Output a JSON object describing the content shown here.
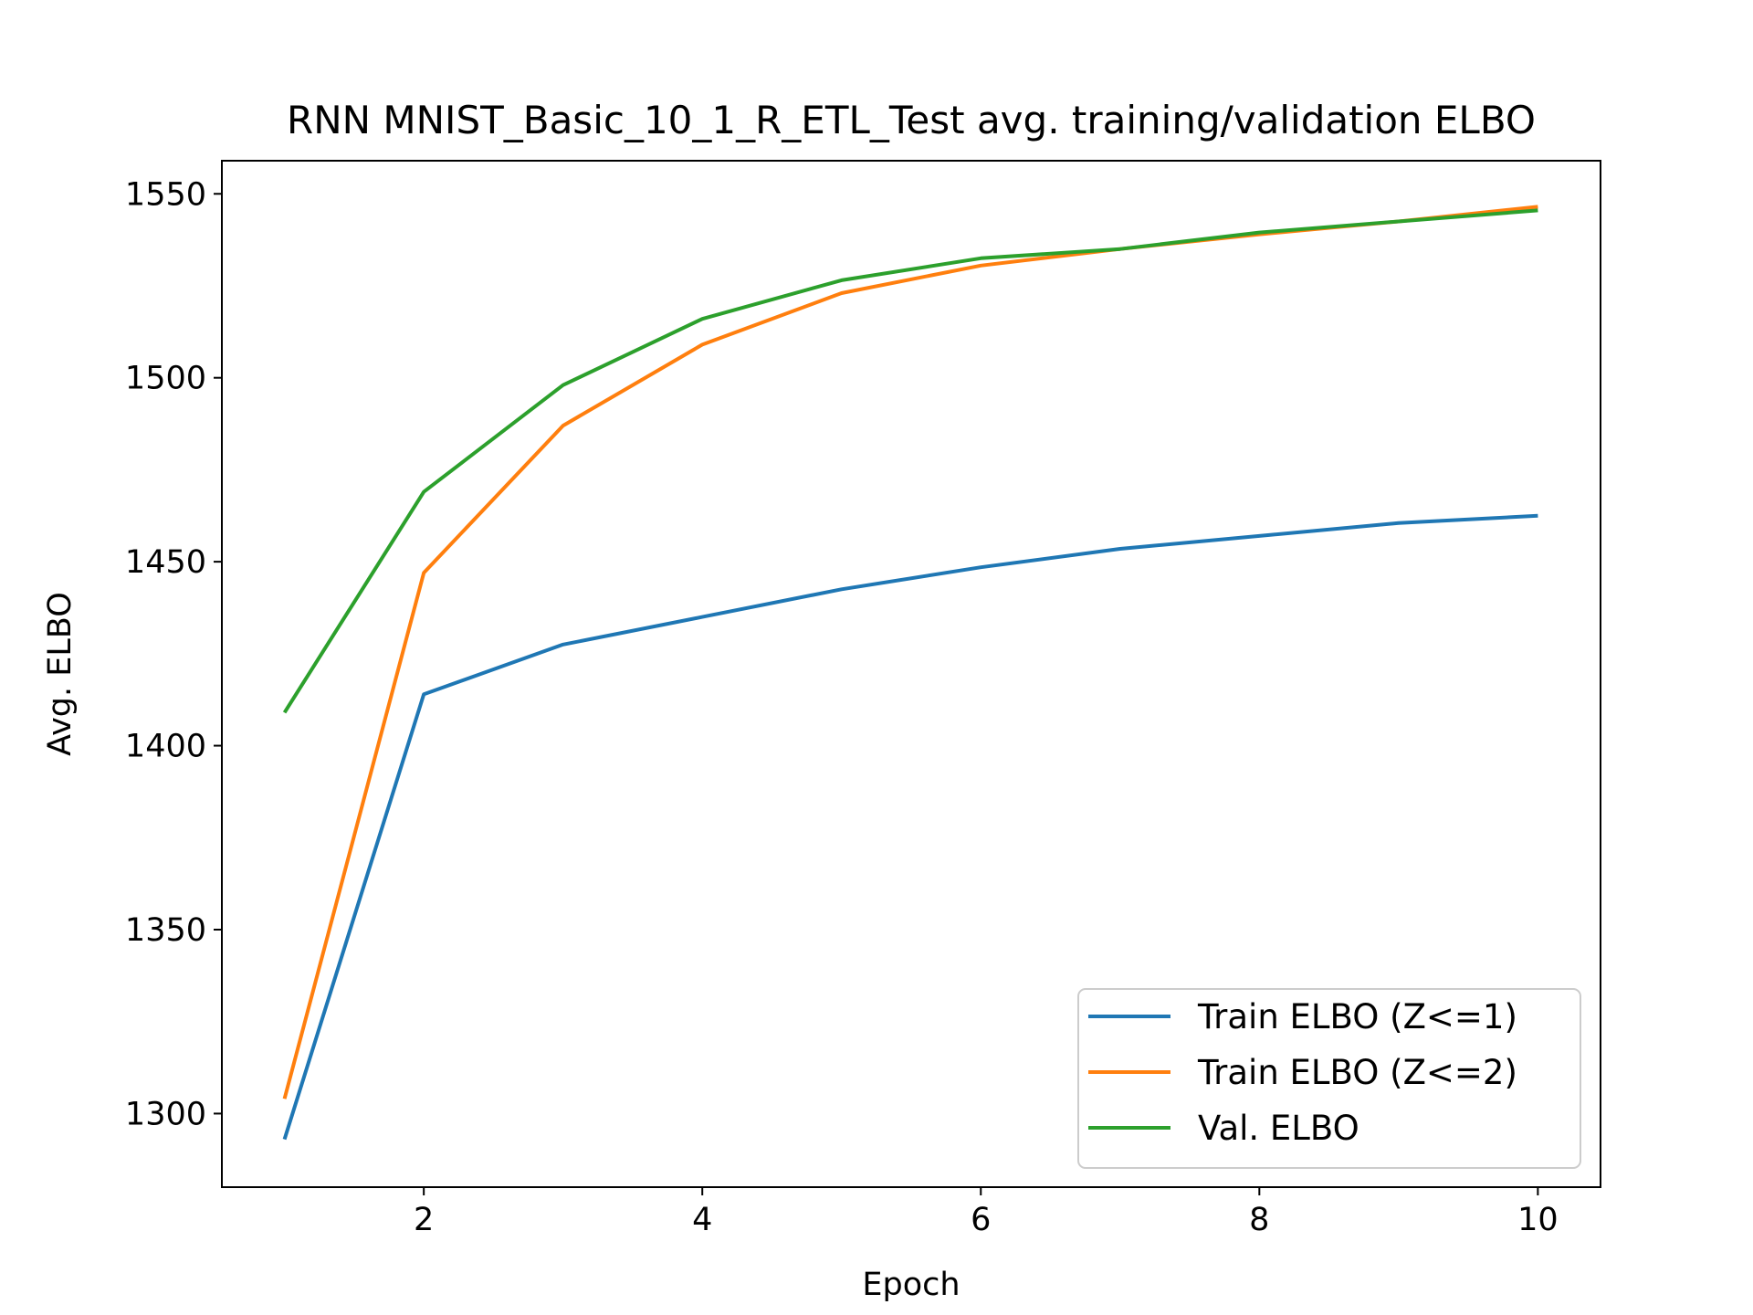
{
  "chart_data": {
    "type": "line",
    "title": "RNN MNIST_Basic_10_1_R_ETL_Test avg. training/validation ELBO",
    "xlabel": "Epoch",
    "ylabel": "Avg. ELBO",
    "x": [
      1,
      2,
      3,
      4,
      5,
      6,
      7,
      8,
      9,
      10
    ],
    "xlim": [
      0.55,
      10.45
    ],
    "ylim": [
      1280,
      1559
    ],
    "xticks": [
      2,
      4,
      6,
      8,
      10
    ],
    "yticks": [
      1300,
      1350,
      1400,
      1450,
      1500,
      1550
    ],
    "grid": false,
    "legend_position": "lower-right",
    "series": [
      {
        "name": "Train ELBO (Z<=1)",
        "color": "#1f77b4",
        "values": [
          1293,
          1414,
          1427.5,
          1435,
          1442.5,
          1448.5,
          1453.5,
          1457,
          1460.5,
          1462.5
        ]
      },
      {
        "name": "Train ELBO (Z<=2)",
        "color": "#ff7f0e",
        "values": [
          1304,
          1447,
          1487,
          1509,
          1523,
          1530.5,
          1535,
          1539,
          1542.5,
          1546.5
        ]
      },
      {
        "name": "Val. ELBO",
        "color": "#2ca02c",
        "values": [
          1409,
          1469,
          1498,
          1516,
          1526.5,
          1532.5,
          1535,
          1539.5,
          1542.5,
          1545.5
        ]
      }
    ]
  }
}
